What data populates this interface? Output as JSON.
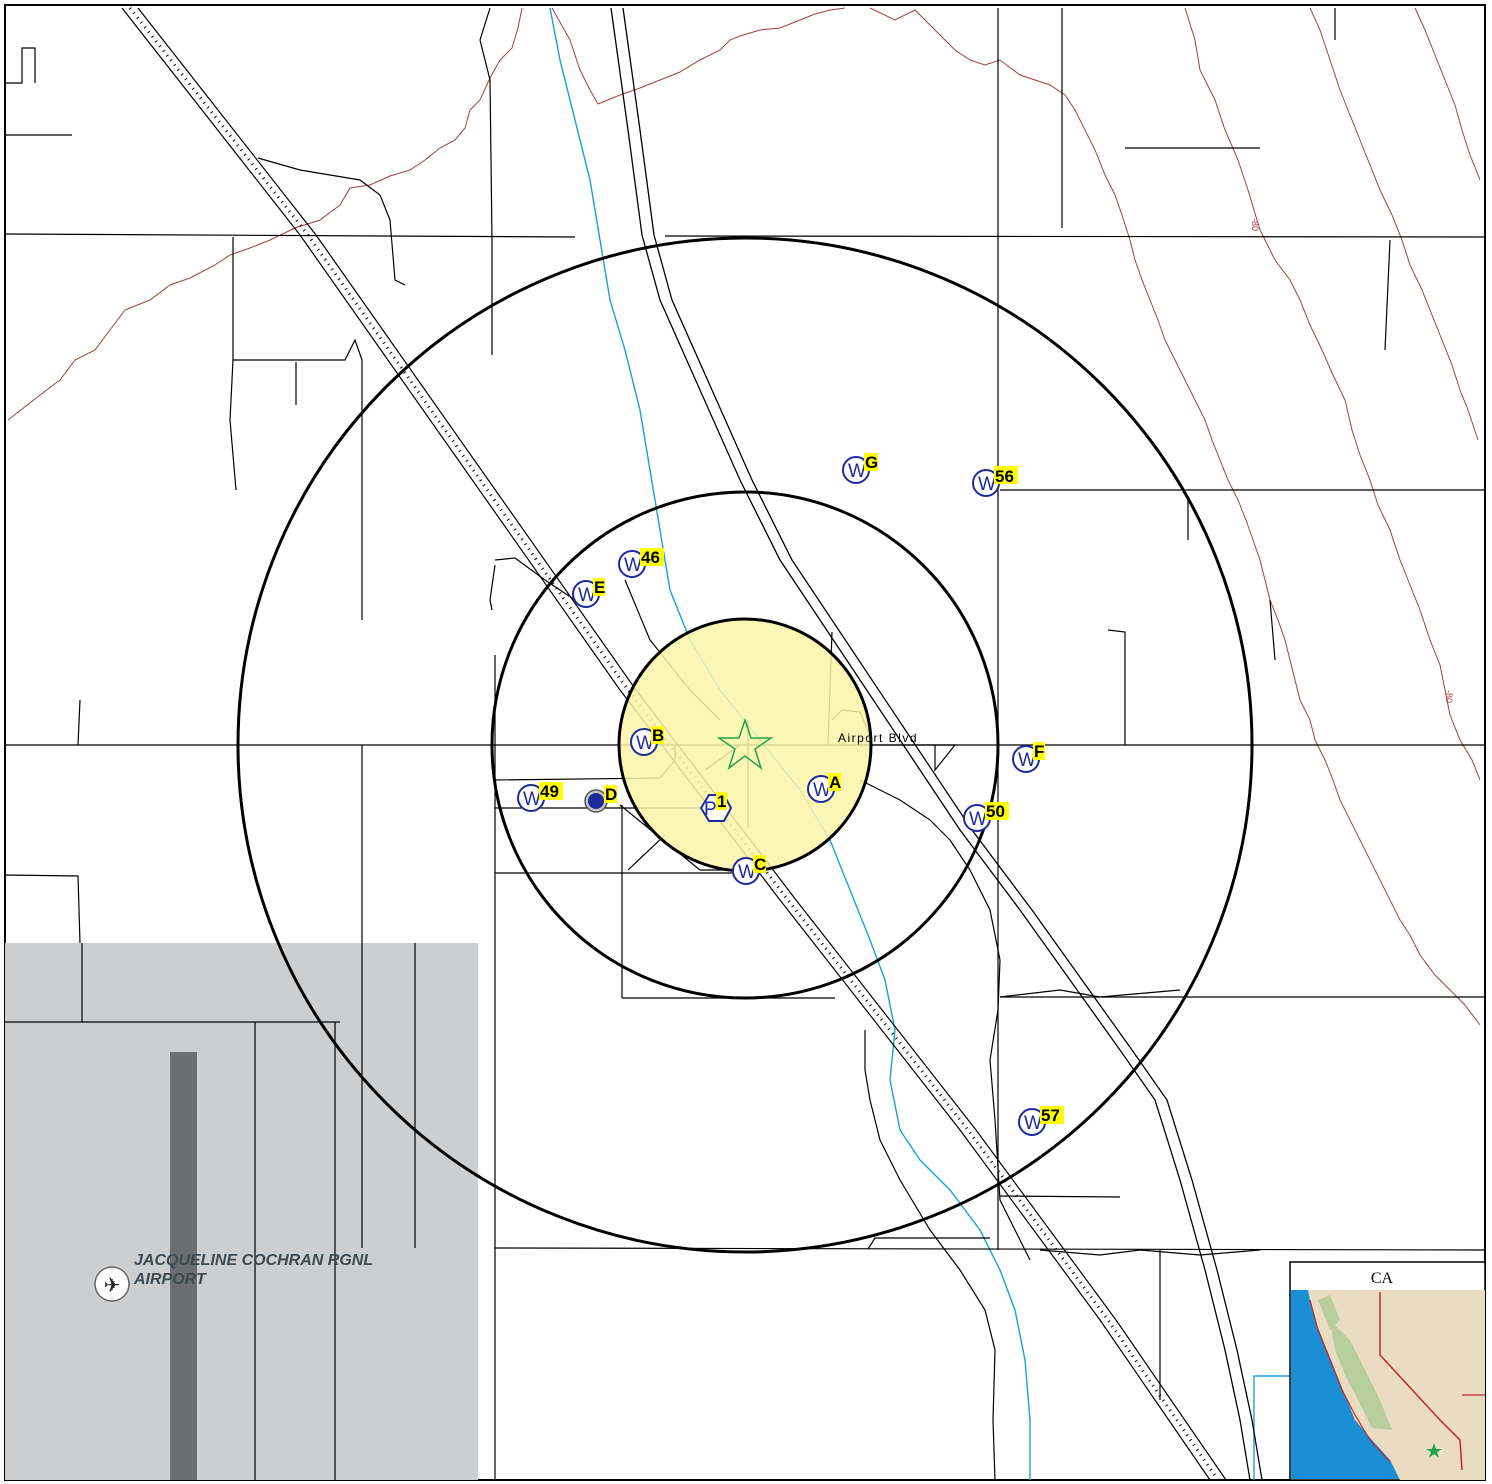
{
  "map": {
    "road_label": "Airport Blvd",
    "airport_name_line1": "JACQUELINE COCHRAN RGNL",
    "airport_name_line2": "AIRPORT",
    "contour_label_1": "-80",
    "contour_label_2": "-80",
    "inset_state_label": "CA",
    "colors": {
      "zone_fill": "#fbf5a8",
      "airport_area": "#cdced0",
      "runway": "#6b6d70",
      "well_symbol": "#1f2a9a",
      "site_star": "#1fa64a",
      "stream": "#18a0e0",
      "contour": "#a0423a",
      "label_highlight": "#ffff00"
    }
  },
  "sites": [
    {
      "id": "w-g",
      "type": "well",
      "label": "G"
    },
    {
      "id": "w-56",
      "type": "well",
      "label": "56"
    },
    {
      "id": "w-46",
      "type": "well",
      "label": "46"
    },
    {
      "id": "w-e",
      "type": "well",
      "label": "E"
    },
    {
      "id": "w-b",
      "type": "well",
      "label": "B"
    },
    {
      "id": "w-f",
      "type": "well",
      "label": "F"
    },
    {
      "id": "w-a",
      "type": "well",
      "label": "A"
    },
    {
      "id": "w-49",
      "type": "well",
      "label": "49"
    },
    {
      "id": "w-50",
      "type": "well",
      "label": "50"
    },
    {
      "id": "w-c",
      "type": "well",
      "label": "C"
    },
    {
      "id": "w-57",
      "type": "well",
      "label": "57"
    },
    {
      "id": "p-1",
      "type": "pump",
      "label": "1"
    },
    {
      "id": "d",
      "type": "point",
      "label": "D"
    }
  ],
  "symbol_letters": {
    "well": "W",
    "pump": "P"
  }
}
